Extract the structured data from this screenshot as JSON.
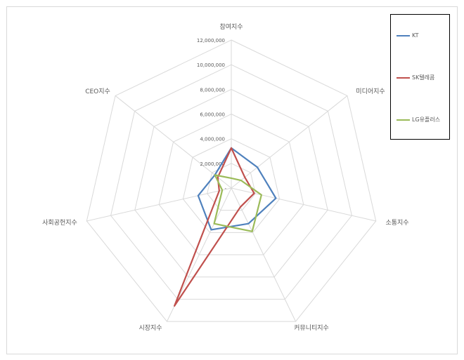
{
  "chart_data": {
    "type": "radar",
    "categories": [
      "참여지수",
      "미디어지수",
      "소통지수",
      "커뮤니티지수",
      "시장지수",
      "사회공헌지수",
      "CEO지수"
    ],
    "rlim": [
      0,
      12000000
    ],
    "ticks": [
      0,
      2000000,
      4000000,
      6000000,
      8000000,
      10000000,
      12000000
    ],
    "tick_labels": [
      "-",
      "2,000,000",
      "4,000,000",
      "6,000,000",
      "8,000,000",
      "10,000,000",
      "12,000,000"
    ],
    "grid": true,
    "legend_position": "right",
    "series": [
      {
        "name": "KT",
        "color": "#4f81bd",
        "values": [
          3250000,
          2700000,
          3700000,
          3200000,
          3750000,
          2750000,
          1700000
        ]
      },
      {
        "name": "SK텔레콤",
        "color": "#c0504d",
        "values": [
          3250000,
          1400000,
          1900000,
          1700000,
          10600000,
          1000000,
          1400000
        ]
      },
      {
        "name": "LG유플러스",
        "color": "#9bbb59",
        "values": [
          800000,
          1000000,
          2500000,
          3900000,
          3200000,
          750000,
          1700000
        ]
      }
    ]
  }
}
